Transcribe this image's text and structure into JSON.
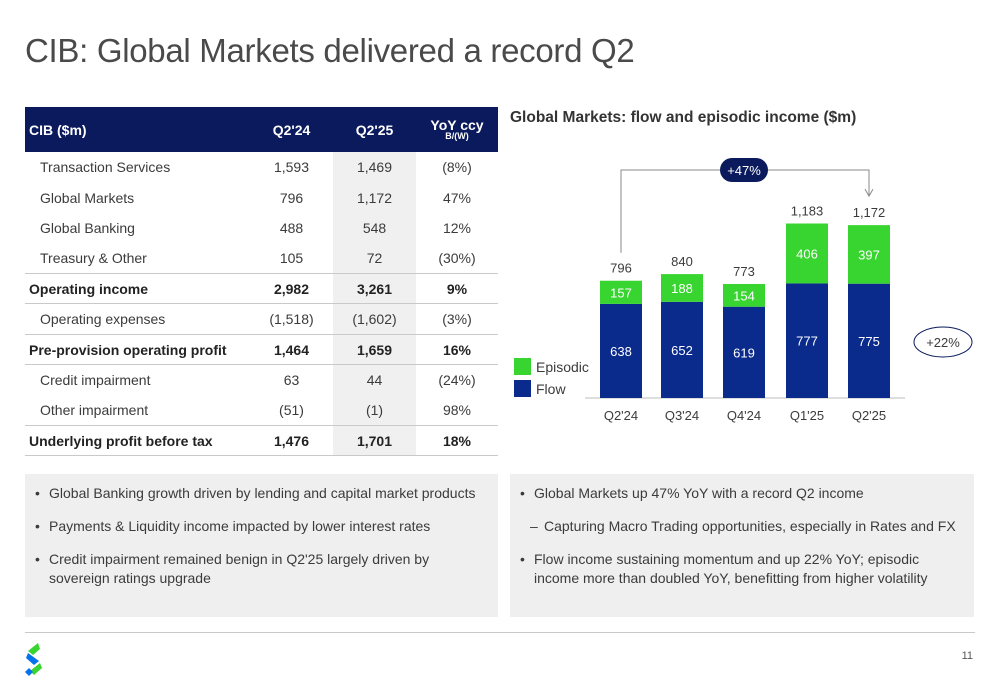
{
  "title": "CIB: Global Markets delivered a record Q2",
  "table": {
    "headers": [
      "CIB ($m)",
      "Q2'24",
      "Q2'25",
      "YoY ccy",
      "B/(W)"
    ],
    "rows": [
      {
        "label": "Transaction Services",
        "q224": "1,593",
        "q225": "1,469",
        "yoy": "(8%)",
        "bold": false
      },
      {
        "label": "Global Markets",
        "q224": "796",
        "q225": "1,172",
        "yoy": "47%",
        "bold": false
      },
      {
        "label": "Global Banking",
        "q224": "488",
        "q225": "548",
        "yoy": "12%",
        "bold": false
      },
      {
        "label": "Treasury & Other",
        "q224": "105",
        "q225": "72",
        "yoy": "(30%)",
        "bold": false
      },
      {
        "label": "Operating income",
        "q224": "2,982",
        "q225": "3,261",
        "yoy": "9%",
        "bold": true
      },
      {
        "label": "Operating expenses",
        "q224": "(1,518)",
        "q225": "(1,602)",
        "yoy": "(3%)",
        "bold": false
      },
      {
        "label": "Pre-provision operating profit",
        "q224": "1,464",
        "q225": "1,659",
        "yoy": "16%",
        "bold": true
      },
      {
        "label": "Credit impairment",
        "q224": "63",
        "q225": "44",
        "yoy": "(24%)",
        "bold": false
      },
      {
        "label": "Other impairment",
        "q224": "(51)",
        "q225": "(1)",
        "yoy": "98%",
        "bold": false
      },
      {
        "label": "Underlying profit before tax",
        "q224": "1,476",
        "q225": "1,701",
        "yoy": "18%",
        "bold": true
      }
    ]
  },
  "chart_data": {
    "type": "bar",
    "title": "Global Markets: flow and episodic income ($m)",
    "categories": [
      "Q2'24",
      "Q3'24",
      "Q4'24",
      "Q1'25",
      "Q2'25"
    ],
    "series": [
      {
        "name": "Flow",
        "values": [
          638,
          652,
          619,
          777,
          775
        ],
        "color": "#0a2a8c"
      },
      {
        "name": "Episodic",
        "values": [
          157,
          188,
          154,
          406,
          397
        ],
        "color": "#38d430"
      }
    ],
    "totals": [
      "796",
      "840",
      "773",
      "1,183",
      "1,172"
    ],
    "yoy_annotation": "+47%",
    "flow_growth_annotation": "+22%",
    "legend_position": "left",
    "ylim": [
      0,
      1300
    ]
  },
  "left_bullets": [
    "Global Banking growth driven by lending and capital market products",
    "Payments & Liquidity income impacted by lower interest rates",
    "Credit impairment remained benign in Q2'25 largely driven by sovereign ratings upgrade"
  ],
  "right_bullets": [
    {
      "text": "Global Markets up 47% YoY with a record Q2 income",
      "sub": false
    },
    {
      "text": "Capturing Macro Trading opportunities, especially in Rates and FX",
      "sub": true
    },
    {
      "text": "Flow income sustaining momentum and up 22% YoY; episodic income more than doubled YoY, benefitting from higher volatility",
      "sub": false
    }
  ],
  "page_number": "11",
  "colors": {
    "navy": "#0a1a5c",
    "flow": "#0a2a8c",
    "episodic": "#38d430",
    "logo_blue": "#0473ea",
    "logo_green": "#38d430"
  }
}
